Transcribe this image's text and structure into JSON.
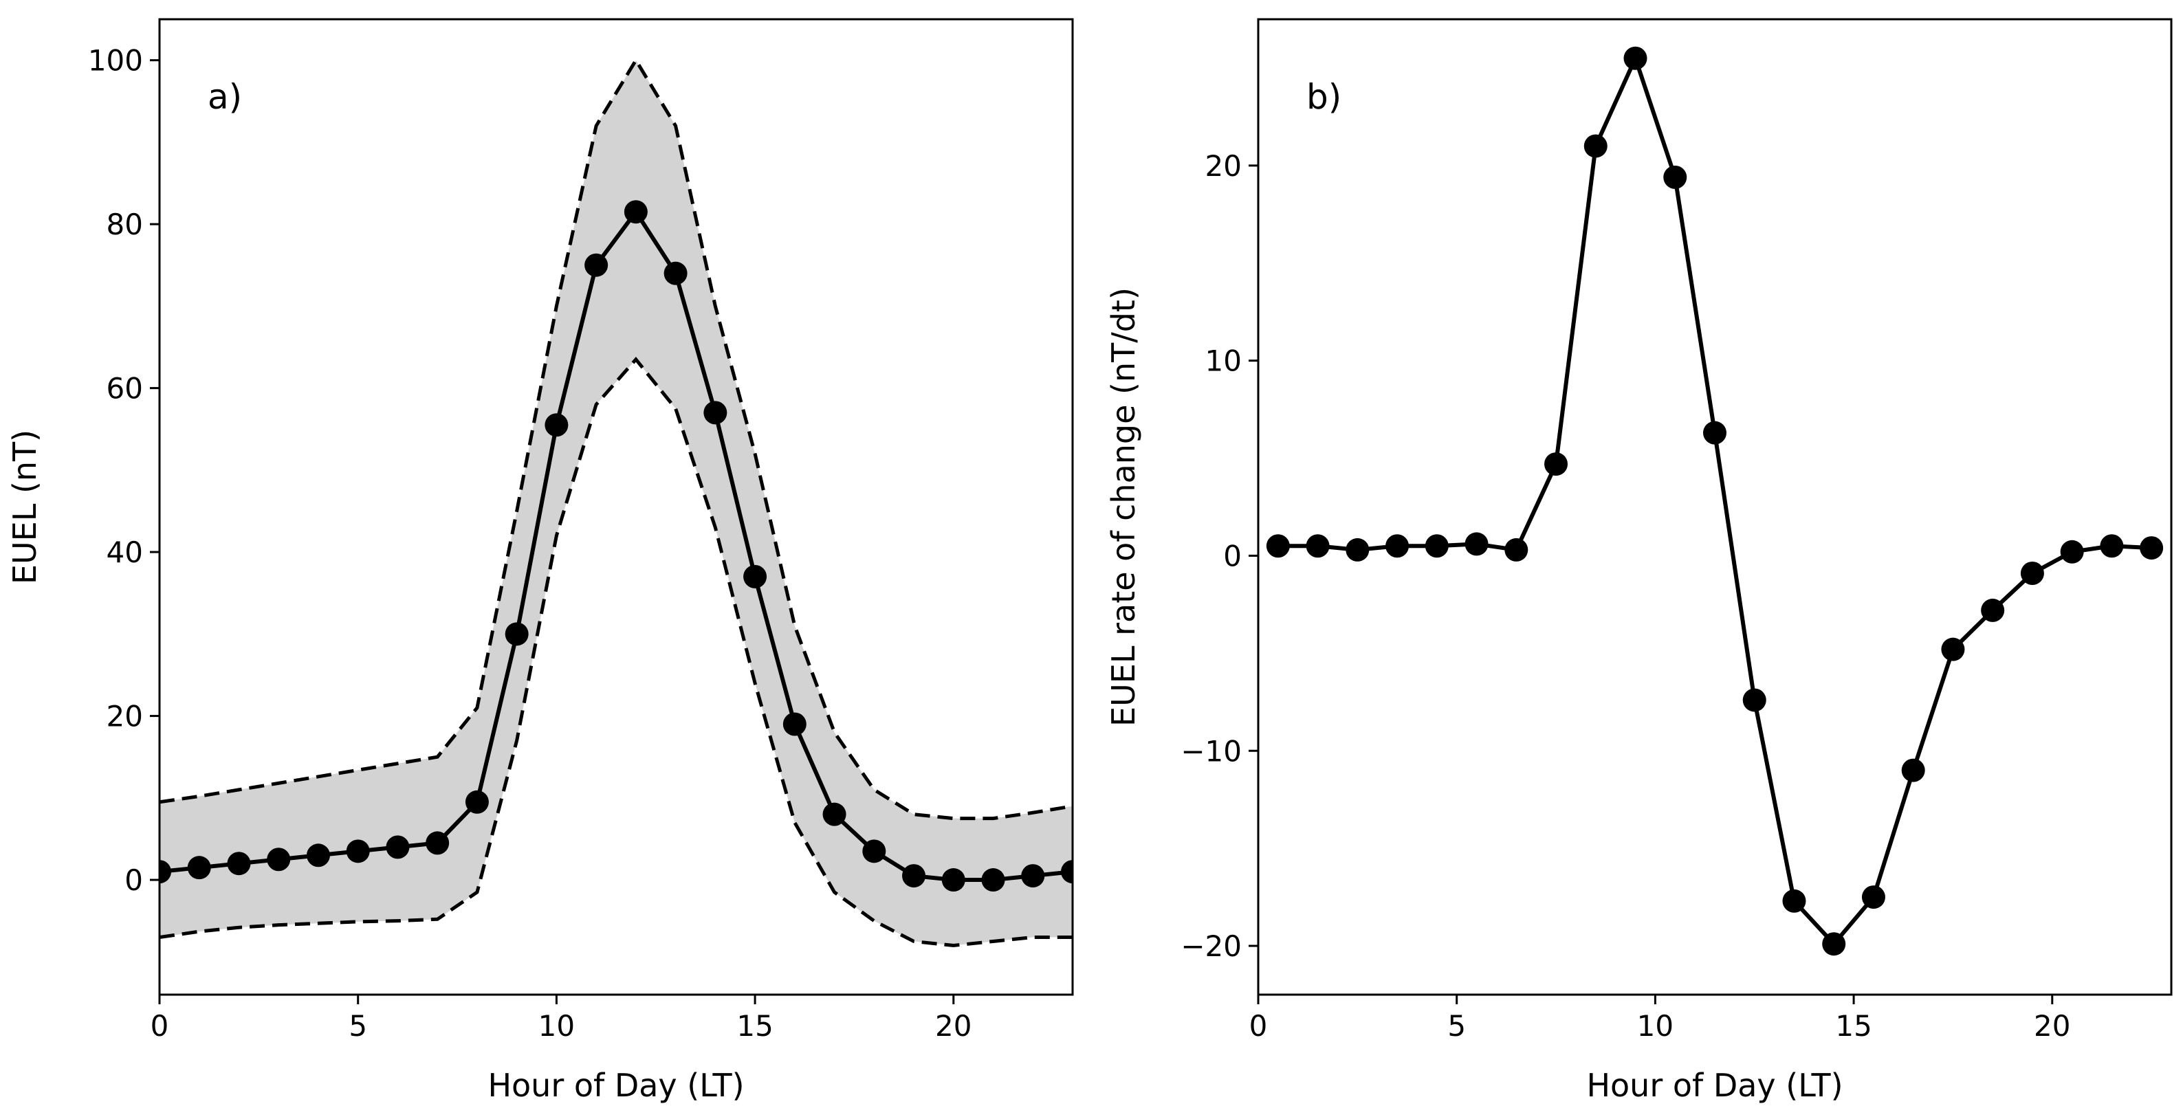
{
  "chart_data": [
    {
      "type": "line",
      "panel_label": "a)",
      "xlabel": "Hour of Day (LT)",
      "ylabel": "EUEL (nT)",
      "xlim": [
        0,
        23
      ],
      "ylim": [
        -14,
        105
      ],
      "xticks": [
        0,
        5,
        10,
        15,
        20
      ],
      "yticks": [
        0,
        20,
        40,
        60,
        80,
        100
      ],
      "grid": false,
      "legend": "none",
      "x": [
        0,
        1,
        2,
        3,
        4,
        5,
        6,
        7,
        8,
        9,
        10,
        11,
        12,
        13,
        14,
        15,
        16,
        17,
        18,
        19,
        20,
        21,
        22,
        23
      ],
      "series": [
        {
          "role": "mean",
          "style": "solid-markers",
          "values": [
            1,
            1.5,
            2,
            2.5,
            3,
            3.5,
            4,
            4.5,
            9.5,
            30,
            55.5,
            75,
            81.5,
            74,
            57,
            37,
            19,
            8,
            3.5,
            0.5,
            0,
            0,
            0.5,
            1
          ]
        },
        {
          "role": "upper",
          "style": "dashed",
          "values": [
            9.5,
            10.2,
            11,
            11.8,
            12.6,
            13.4,
            14.2,
            15,
            21,
            45,
            70,
            92,
            100,
            92,
            70,
            52,
            31,
            18,
            11,
            8,
            7.5,
            7.5,
            8.2,
            9
          ]
        },
        {
          "role": "lower",
          "style": "dashed",
          "values": [
            -7,
            -6.3,
            -5.8,
            -5.5,
            -5.3,
            -5.1,
            -5,
            -4.8,
            -1.5,
            17,
            42,
            58,
            63.5,
            57.5,
            43,
            24,
            7,
            -1.5,
            -5,
            -7.5,
            -8,
            -7.5,
            -7,
            -7
          ]
        }
      ],
      "colors": {
        "line": "#000000",
        "band": "#d3d3d3"
      }
    },
    {
      "type": "line",
      "panel_label": "b)",
      "xlabel": "Hour of Day (LT)",
      "ylabel": "EUEL rate of change (nT/dt)",
      "xlim": [
        0,
        23
      ],
      "ylim": [
        -22.5,
        27.5
      ],
      "xticks": [
        0,
        5,
        10,
        15,
        20
      ],
      "yticks": [
        -20,
        -10,
        0,
        10,
        20
      ],
      "grid": false,
      "legend": "none",
      "x": [
        0.5,
        1.5,
        2.5,
        3.5,
        4.5,
        5.5,
        6.5,
        7.5,
        8.5,
        9.5,
        10.5,
        11.5,
        12.5,
        13.5,
        14.5,
        15.5,
        16.5,
        17.5,
        18.5,
        19.5,
        20.5,
        21.5,
        22.5
      ],
      "series": [
        {
          "role": "rate",
          "style": "solid-markers",
          "values": [
            0.5,
            0.5,
            0.3,
            0.5,
            0.5,
            0.6,
            0.3,
            4.7,
            21,
            25.5,
            19.4,
            6.3,
            -7.4,
            -17.7,
            -19.9,
            -17.5,
            -11,
            -4.8,
            -2.8,
            -0.9,
            0.2,
            0.5,
            0.4
          ]
        }
      ],
      "colors": {
        "line": "#000000"
      }
    }
  ]
}
